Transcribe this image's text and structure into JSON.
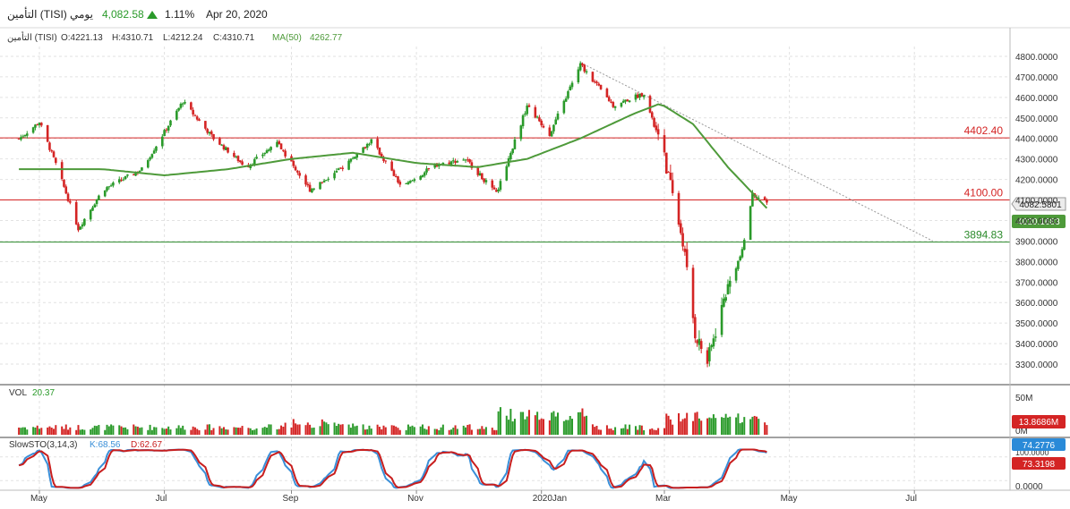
{
  "header": {
    "symbol_name": "التأمين (TISI)",
    "period": "يومي",
    "last_price": "4,082.58",
    "change_pct": "1.11%",
    "date": "Apr 20, 2020"
  },
  "ohlc_bar": {
    "symbol": "التأمين (TISI)",
    "open": "O:4221.13",
    "high": "H:4310.71",
    "low": "L:4212.24",
    "close": "C:4310.71",
    "ma_label": "MA(50)",
    "ma_value": "4262.77"
  },
  "volume_panel": {
    "label": "VOL",
    "value": "20.37",
    "axis_ticks": [
      "50M",
      "0M"
    ],
    "badge": "13.8686M"
  },
  "stoch_panel": {
    "label": "SlowSTO(3,14,3)",
    "k": "K:68.56",
    "d": "D:62.67",
    "axis_ticks": [
      "100.0000",
      "0.0000"
    ],
    "badge_k": "74.2776",
    "badge_d": "73.3198"
  },
  "price_badges": {
    "last": "4082.5801",
    "ma": "4020.1683"
  },
  "levels": [
    {
      "value": 4402.4,
      "label": "4402.40",
      "color": "#d42424"
    },
    {
      "value": 4100.0,
      "label": "4100.00",
      "color": "#d42424"
    },
    {
      "value": 3894.83,
      "label": "3894.83",
      "color": "#2a8a2a"
    }
  ],
  "colors": {
    "up": "#2a9a2a",
    "down": "#d42424",
    "ma": "#4e9a3a",
    "k_line": "#3a8fd8",
    "d_line": "#c81e1e",
    "grid": "#e2e2e2"
  },
  "chart_data": {
    "type": "candlestick",
    "price_axis": {
      "ylim": [
        3200,
        4880
      ],
      "ticks": [
        "4800.0000",
        "4700.0000",
        "4600.0000",
        "4500.0000",
        "4400.0000",
        "4300.0000",
        "4200.0000",
        "4100.0000",
        "4000.0000",
        "3900.0000",
        "3800.0000",
        "3700.0000",
        "3600.0000",
        "3500.0000",
        "3400.0000",
        "3300.0000"
      ]
    },
    "time_axis": {
      "labels": [
        "May",
        "Jul",
        "Sep",
        "Nov",
        "2020Jan",
        "Mar",
        "May",
        "Jul"
      ]
    },
    "price_anchors": [
      [
        "Apr 20, 2019",
        4390
      ],
      [
        "May 1, 2019",
        4480
      ],
      [
        "May 10, 2019",
        4250
      ],
      [
        "May 20, 2019",
        3960
      ],
      [
        "Jun 1, 2019",
        4150
      ],
      [
        "Jun 20, 2019",
        4250
      ],
      [
        "Jul 10, 2019",
        4580
      ],
      [
        "Jul 25, 2019",
        4400
      ],
      [
        "Aug 10, 2019",
        4260
      ],
      [
        "Aug 25, 2019",
        4380
      ],
      [
        "Sep 10, 2019",
        4150
      ],
      [
        "Sep 25, 2019",
        4250
      ],
      [
        "Oct 10, 2019",
        4390
      ],
      [
        "Oct 25, 2019",
        4160
      ],
      [
        "Nov 10, 2019",
        4270
      ],
      [
        "Nov 25, 2019",
        4300
      ],
      [
        "Dec 10, 2019",
        4130
      ],
      [
        "Dec 25, 2019",
        4560
      ],
      [
        "Jan 5, 2020",
        4420
      ],
      [
        "Jan 20, 2020",
        4760
      ],
      [
        "Feb 5, 2020",
        4560
      ],
      [
        "Feb 20, 2020",
        4620
      ],
      [
        "Mar 1, 2020",
        4300
      ],
      [
        "Mar 10, 2020",
        3900
      ],
      [
        "Mar 16, 2020",
        3450
      ],
      [
        "Mar 22, 2020",
        3310
      ],
      [
        "Mar 31, 2020",
        3650
      ],
      [
        "Apr 8, 2020",
        3850
      ],
      [
        "Apr 13, 2020",
        4130
      ],
      [
        "Apr 20, 2020",
        4083
      ]
    ],
    "ma50_anchors": [
      [
        "Apr 20, 2019",
        4250
      ],
      [
        "Jun 1, 2019",
        4250
      ],
      [
        "Jul 1, 2019",
        4220
      ],
      [
        "Aug 1, 2019",
        4250
      ],
      [
        "Sep 1, 2019",
        4300
      ],
      [
        "Oct 1, 2019",
        4330
      ],
      [
        "Nov 1, 2019",
        4280
      ],
      [
        "Dec 1, 2019",
        4260
      ],
      [
        "Dec 25, 2019",
        4300
      ],
      [
        "Jan 20, 2020",
        4400
      ],
      [
        "Feb 15, 2020",
        4520
      ],
      [
        "Feb 28, 2020",
        4570
      ],
      [
        "Mar 15, 2020",
        4470
      ],
      [
        "Apr 1, 2020",
        4260
      ],
      [
        "Apr 20, 2020",
        4060
      ]
    ],
    "trendline": [
      [
        "Jan 20, 2020",
        4770
      ],
      [
        "Jul 10, 2020",
        3900
      ]
    ],
    "volume_ylim": [
      0,
      50
    ],
    "stoch_ylim": [
      0,
      100
    ]
  }
}
